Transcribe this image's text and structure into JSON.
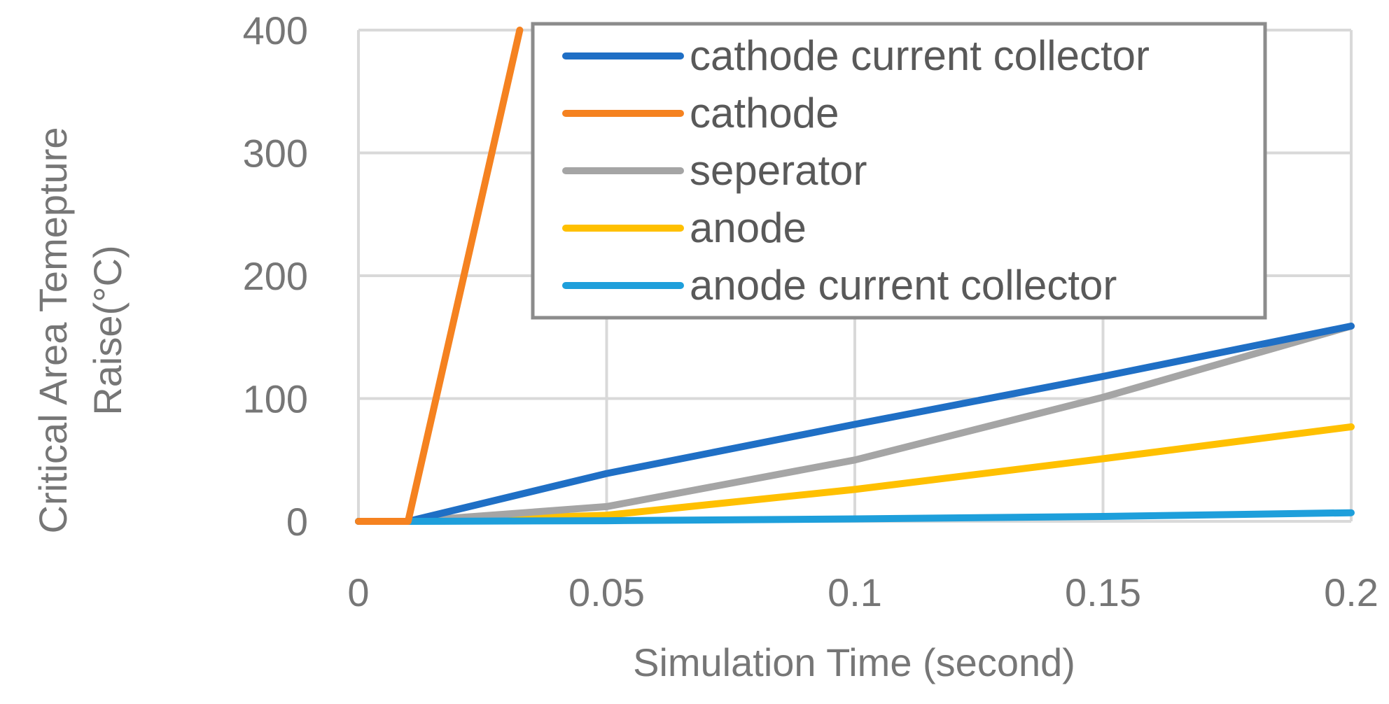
{
  "chart_data": {
    "type": "line",
    "title": "",
    "xlabel": "Simulation Time (second)",
    "ylabel_lines": [
      "Critical Area Temepture",
      "Raise(°C)"
    ],
    "xlim": [
      0,
      0.2
    ],
    "ylim": [
      0,
      400
    ],
    "x_ticks": [
      0,
      0.05,
      0.1,
      0.15,
      0.2
    ],
    "x_tick_labels": [
      "0",
      "0.05",
      "0.1",
      "0.15",
      "0.2"
    ],
    "y_ticks": [
      0,
      100,
      200,
      300,
      400
    ],
    "y_tick_labels": [
      "0",
      "100",
      "200",
      "300",
      "400"
    ],
    "grid": true,
    "legend_position": "top-right",
    "series": [
      {
        "name": "cathode current collector",
        "color": "#1F6FC5",
        "points": [
          [
            0,
            0
          ],
          [
            0.01,
            0
          ],
          [
            0.05,
            39
          ],
          [
            0.1,
            79
          ],
          [
            0.15,
            118
          ],
          [
            0.2,
            159
          ]
        ]
      },
      {
        "name": "cathode",
        "color": "#F58220",
        "points": [
          [
            0,
            0
          ],
          [
            0.01,
            0
          ],
          [
            0.0325,
            400
          ]
        ]
      },
      {
        "name": "seperator",
        "color": "#A5A5A5",
        "points": [
          [
            0,
            0
          ],
          [
            0.01,
            0
          ],
          [
            0.05,
            12
          ],
          [
            0.1,
            50
          ],
          [
            0.15,
            101
          ],
          [
            0.2,
            159
          ]
        ]
      },
      {
        "name": "anode",
        "color": "#FFC000",
        "points": [
          [
            0,
            0
          ],
          [
            0.01,
            0
          ],
          [
            0.05,
            5
          ],
          [
            0.1,
            26
          ],
          [
            0.15,
            51
          ],
          [
            0.2,
            77
          ]
        ]
      },
      {
        "name": "anode current collector",
        "color": "#1E9FDB",
        "points": [
          [
            0,
            0
          ],
          [
            0.01,
            0
          ],
          [
            0.05,
            0.5
          ],
          [
            0.1,
            2
          ],
          [
            0.15,
            4
          ],
          [
            0.2,
            7
          ]
        ]
      }
    ]
  }
}
